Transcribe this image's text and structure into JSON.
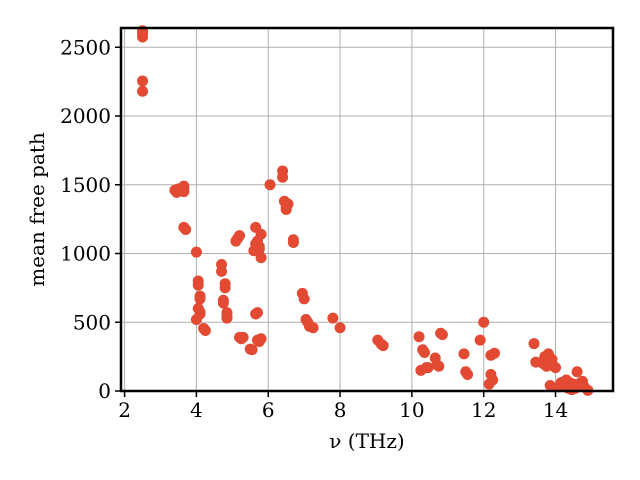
{
  "chart_data": {
    "type": "scatter",
    "title": "",
    "xlabel": "ν (THz)",
    "ylabel": "mean free path",
    "xlim": [
      1.9,
      15.6
    ],
    "ylim": [
      0,
      2640
    ],
    "xticks": [
      2,
      4,
      6,
      8,
      10,
      12,
      14
    ],
    "yticks": [
      0,
      500,
      1000,
      1500,
      2000,
      2500
    ],
    "xtick_labels": [
      "2",
      "4",
      "6",
      "8",
      "10",
      "12",
      "14"
    ],
    "ytick_labels": [
      "0",
      "500",
      "1000",
      "1500",
      "2000",
      "2500"
    ],
    "grid": true,
    "legend": "none",
    "marker_color": "#e34a33",
    "series": [
      {
        "x": [
          2.5,
          2.5,
          2.5,
          2.5,
          2.5,
          3.4,
          3.45,
          3.5,
          3.65,
          3.65,
          3.65,
          3.65,
          3.7,
          4.0,
          4.0,
          4.05,
          4.05,
          4.05,
          4.1,
          4.1,
          4.1,
          4.1,
          4.2,
          4.25,
          4.7,
          4.7,
          4.75,
          4.75,
          4.8,
          4.8,
          4.85,
          4.85,
          4.85,
          5.1,
          5.15,
          5.2,
          5.2,
          5.25,
          5.3,
          5.5,
          5.55,
          5.6,
          5.65,
          5.65,
          5.65,
          5.7,
          5.7,
          5.7,
          5.75,
          5.75,
          5.75,
          5.8,
          5.8,
          5.8,
          6.05,
          6.4,
          6.4,
          6.45,
          6.5,
          6.5,
          6.55,
          6.7,
          6.7,
          6.95,
          7.0,
          7.05,
          7.1,
          7.15,
          7.25,
          7.8,
          8.0,
          9.05,
          9.15,
          9.2,
          10.2,
          10.25,
          10.3,
          10.35,
          10.4,
          10.45,
          10.65,
          10.7,
          10.75,
          10.8,
          10.85,
          11.45,
          11.5,
          11.55,
          11.9,
          12.0,
          12.15,
          12.2,
          12.2,
          12.25,
          12.3,
          13.4,
          13.45,
          13.65,
          13.7,
          13.75,
          13.8,
          13.85,
          13.9,
          13.95,
          14.0,
          14.1,
          14.15,
          14.2,
          14.25,
          14.3,
          14.35,
          14.4,
          14.45,
          14.5,
          14.55,
          14.6,
          14.65,
          14.7,
          14.75,
          14.8,
          14.9
        ],
        "y": [
          2620,
          2575,
          2255,
          2180,
          2600,
          1460,
          1445,
          1470,
          1490,
          1470,
          1450,
          1190,
          1175,
          1010,
          520,
          800,
          770,
          600,
          690,
          670,
          575,
          560,
          455,
          440,
          920,
          870,
          660,
          640,
          780,
          750,
          570,
          545,
          530,
          1090,
          1110,
          1130,
          390,
          380,
          390,
          305,
          300,
          1020,
          1190,
          1070,
          560,
          1090,
          570,
          370,
          1050,
          1030,
          360,
          1140,
          970,
          380,
          1500,
          1600,
          1555,
          1380,
          1340,
          1320,
          1360,
          1100,
          1080,
          710,
          670,
          520,
          500,
          470,
          460,
          530,
          460,
          370,
          340,
          330,
          395,
          150,
          300,
          280,
          170,
          170,
          240,
          190,
          180,
          420,
          410,
          270,
          140,
          120,
          370,
          500,
          50,
          260,
          120,
          80,
          275,
          345,
          210,
          200,
          250,
          180,
          270,
          40,
          230,
          180,
          170,
          30,
          60,
          40,
          70,
          80,
          20,
          60,
          10,
          50,
          20,
          140,
          40,
          60,
          70,
          30,
          5
        ]
      }
    ]
  }
}
